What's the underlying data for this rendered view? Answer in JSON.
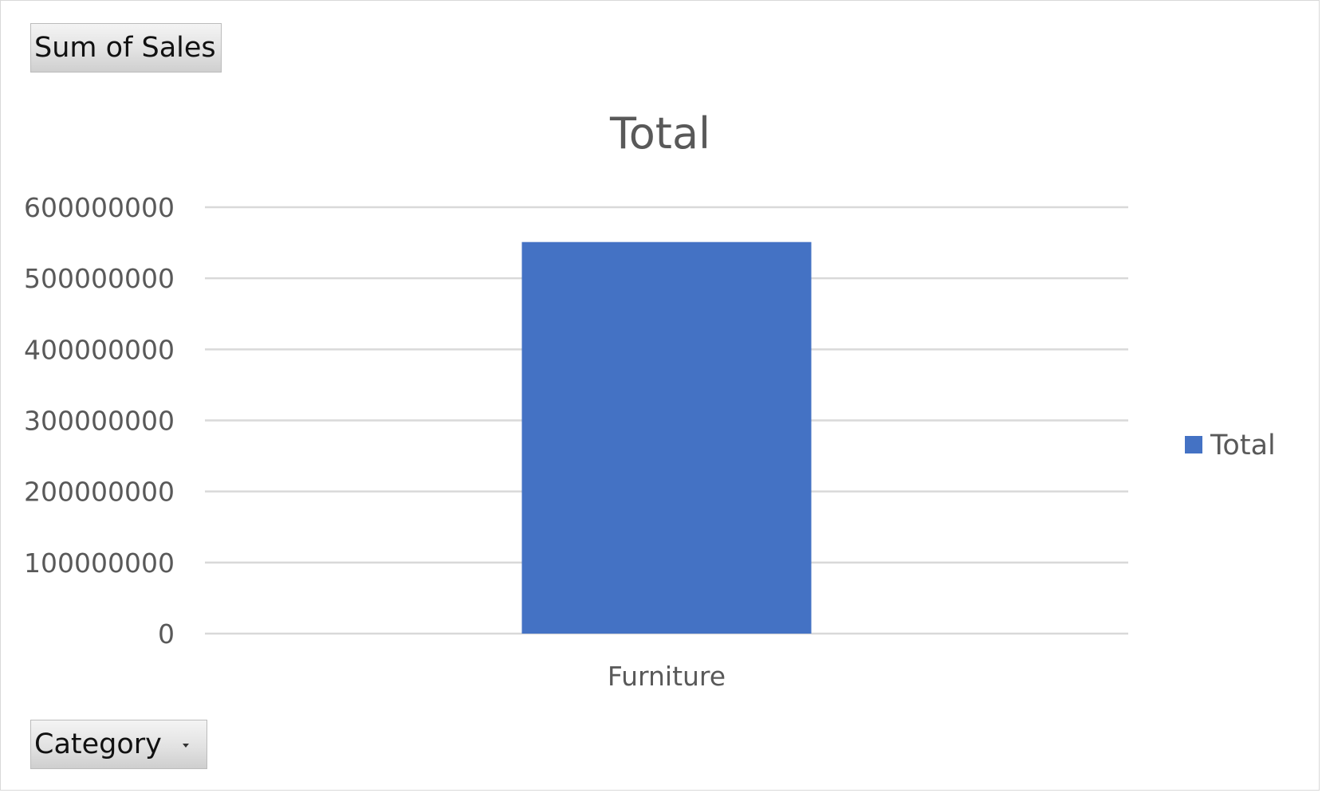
{
  "pivot_fields": {
    "values_label": "Sum of Sales",
    "axis_field_label": "Category"
  },
  "icons": {
    "category_dropdown": "chevron-down-icon"
  },
  "colors": {
    "bar": "#4472c4",
    "gridline": "#d9d9d9",
    "text": "#595959"
  },
  "chart_data": {
    "type": "bar",
    "title": "Total",
    "categories": [
      "Furniture"
    ],
    "series": [
      {
        "name": "Total",
        "values": [
          551000000
        ]
      }
    ],
    "xlabel": "",
    "ylabel": "",
    "ylim": [
      0,
      600000000
    ],
    "yticks": [
      "0",
      "100000000",
      "200000000",
      "300000000",
      "400000000",
      "500000000",
      "600000000"
    ],
    "grid": true,
    "legend_position": "right"
  }
}
